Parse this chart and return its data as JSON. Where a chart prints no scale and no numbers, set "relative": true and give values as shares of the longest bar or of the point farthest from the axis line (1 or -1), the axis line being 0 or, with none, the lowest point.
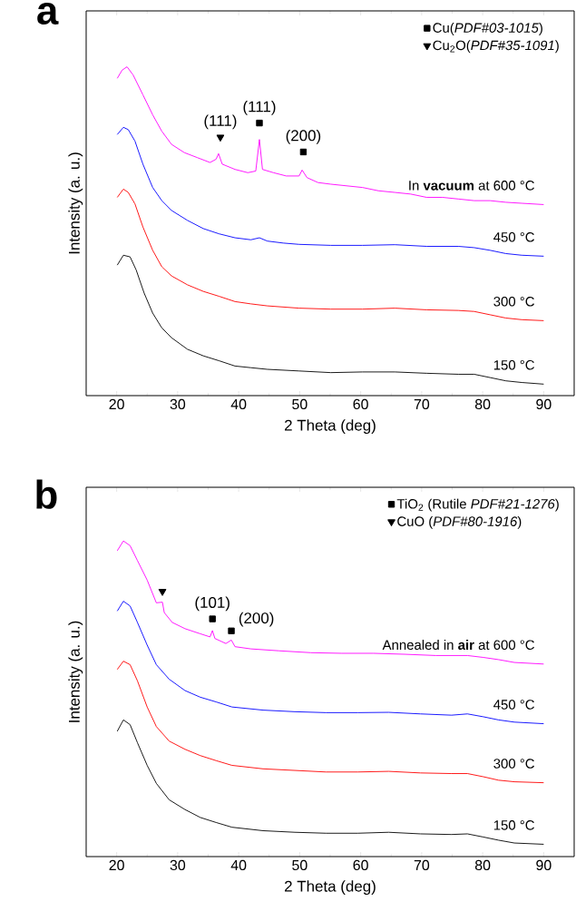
{
  "chart_data": [
    {
      "type": "line",
      "title": "a",
      "xlabel": "2 Theta (deg)",
      "ylabel": "Intensity (a. u.)",
      "relative": true,
      "xlim": [
        15,
        95
      ],
      "xticks": [
        20,
        30,
        40,
        50,
        60,
        70,
        80,
        90
      ],
      "tick_labels": "x",
      "legend": "top right",
      "marker": "none",
      "series": [
        {
          "name": "150 °C",
          "color": "#000000",
          "x": [
            20.1,
            21.1,
            22.2,
            23.2,
            24.5,
            25.9,
            27.4,
            29.0,
            31.6,
            34.2,
            36.8,
            39.4,
            42.0,
            44.7,
            49.9,
            55.1,
            60.3,
            65.6,
            70.8,
            76.0,
            78.6,
            81.2,
            83.8,
            86.4,
            90
          ],
          "values": [
            0.397,
            0.427,
            0.422,
            0.382,
            0.312,
            0.251,
            0.206,
            0.176,
            0.141,
            0.121,
            0.106,
            0.09,
            0.085,
            0.08,
            0.075,
            0.07,
            0.072,
            0.072,
            0.068,
            0.065,
            0.065,
            0.055,
            0.045,
            0.04,
            0.035
          ]
        },
        {
          "name": "300 °C",
          "color": "#ff0000",
          "x": [
            20.1,
            21.1,
            21.9,
            23.0,
            24.3,
            25.9,
            27.4,
            29.0,
            31.6,
            34.2,
            36.8,
            39.4,
            42.0,
            44.7,
            49.9,
            55.1,
            60.3,
            65.6,
            70.8,
            76.0,
            78.6,
            81.2,
            83.8,
            86.4,
            90
          ],
          "values": [
            0.603,
            0.628,
            0.618,
            0.583,
            0.513,
            0.442,
            0.392,
            0.364,
            0.337,
            0.317,
            0.302,
            0.286,
            0.279,
            0.273,
            0.266,
            0.263,
            0.263,
            0.266,
            0.261,
            0.259,
            0.256,
            0.246,
            0.236,
            0.231,
            0.228
          ]
        },
        {
          "name": "450 °C",
          "color": "#0000ff",
          "x": [
            20.1,
            21.1,
            21.9,
            23.0,
            24.3,
            25.9,
            27.4,
            29.0,
            31.6,
            34.2,
            36.8,
            39.4,
            42.0,
            43.4,
            44.7,
            47.3,
            49.9,
            55.1,
            60.3,
            65.6,
            70.8,
            76.0,
            78.6,
            81.2,
            83.8,
            86.4,
            90
          ],
          "values": [
            0.794,
            0.816,
            0.809,
            0.774,
            0.704,
            0.633,
            0.593,
            0.563,
            0.533,
            0.508,
            0.492,
            0.48,
            0.474,
            0.48,
            0.47,
            0.464,
            0.46,
            0.457,
            0.457,
            0.459,
            0.454,
            0.454,
            0.45,
            0.442,
            0.432,
            0.427,
            0.424
          ]
        },
        {
          "name": "In **vacuum** at 600 °C",
          "color": "#ff00ff",
          "x": [
            20.1,
            20.9,
            21.7,
            22.7,
            24.3,
            25.9,
            27.4,
            29.0,
            31.1,
            33.2,
            35.3,
            36.3,
            36.7,
            37.3,
            39.4,
            41.5,
            42.8,
            43.4,
            43.9,
            45.7,
            47.8,
            49.9,
            50.4,
            51.2,
            53.0,
            55.1,
            57.7,
            60.3,
            62.9,
            65.6,
            68.2,
            70.8,
            73.4,
            76.0,
            78.6,
            81.2,
            83.8,
            86.4,
            90
          ],
          "values": [
            0.965,
            0.99,
            1.0,
            0.975,
            0.915,
            0.854,
            0.804,
            0.764,
            0.739,
            0.724,
            0.709,
            0.719,
            0.736,
            0.704,
            0.688,
            0.678,
            0.683,
            0.779,
            0.688,
            0.678,
            0.668,
            0.668,
            0.686,
            0.663,
            0.648,
            0.643,
            0.638,
            0.633,
            0.623,
            0.618,
            0.613,
            0.603,
            0.603,
            0.598,
            0.593,
            0.593,
            0.588,
            0.585,
            0.581
          ]
        },
        {
          "name": "Cu(*PDF#03-1015*)",
          "type": "scatter",
          "marker": "square",
          "color": "#000000",
          "x": [
            43.4,
            50.6
          ],
          "values": [
            0.829,
            0.741
          ]
        },
        {
          "name": "Cu$_{2}$O(*PDF#35-1091*)",
          "type": "scatter",
          "marker": "triangle",
          "color": "#000000",
          "x": [
            37.0
          ],
          "values": [
            0.786
          ]
        }
      ],
      "annotations": [
        {
          "text": "(111)",
          "x": 37.0,
          "y": 0.786
        },
        {
          "text": "(111)",
          "x": 43.4,
          "y": 0.829
        },
        {
          "text": "(200)",
          "x": 50.6,
          "y": 0.741
        }
      ]
    },
    {
      "type": "line",
      "title": "b",
      "xlabel": "2 Theta (deg)",
      "ylabel": "Intensity (a. u.)",
      "relative": true,
      "xlim": [
        15,
        95
      ],
      "xticks": [
        20,
        30,
        40,
        50,
        60,
        70,
        80,
        90
      ],
      "tick_labels": "x",
      "legend": "top right",
      "marker": "none",
      "series": [
        {
          "name": "150 °C",
          "color": "#000000",
          "x": [
            20.1,
            21.1,
            22.2,
            23.4,
            25.0,
            26.5,
            28.6,
            31.2,
            33.7,
            36.3,
            38.9,
            44.0,
            49.2,
            54.3,
            59.5,
            64.6,
            69.8,
            74.9,
            77.5,
            80.1,
            82.6,
            85.2,
            90
          ],
          "values": [
            0.397,
            0.433,
            0.418,
            0.361,
            0.289,
            0.232,
            0.18,
            0.149,
            0.124,
            0.108,
            0.093,
            0.082,
            0.077,
            0.074,
            0.074,
            0.077,
            0.072,
            0.07,
            0.072,
            0.062,
            0.052,
            0.043,
            0.039
          ]
        },
        {
          "name": "300 °C",
          "color": "#ff0000",
          "x": [
            20.1,
            21.1,
            22.2,
            23.4,
            25.0,
            26.5,
            28.6,
            31.2,
            33.7,
            36.3,
            38.9,
            44.0,
            49.2,
            54.3,
            59.5,
            64.6,
            69.8,
            74.9,
            77.5,
            80.1,
            82.6,
            85.2,
            90
          ],
          "values": [
            0.593,
            0.619,
            0.608,
            0.557,
            0.474,
            0.412,
            0.366,
            0.34,
            0.32,
            0.304,
            0.289,
            0.278,
            0.273,
            0.268,
            0.268,
            0.27,
            0.265,
            0.263,
            0.263,
            0.253,
            0.242,
            0.237,
            0.234
          ]
        },
        {
          "name": "450 °C",
          "color": "#0000ff",
          "x": [
            20.1,
            21.1,
            22.2,
            23.4,
            25.0,
            26.5,
            28.6,
            31.2,
            33.7,
            36.3,
            38.9,
            44.0,
            49.2,
            54.3,
            59.5,
            64.6,
            69.8,
            74.9,
            77.5,
            80.1,
            82.6,
            85.2,
            90
          ],
          "values": [
            0.778,
            0.809,
            0.794,
            0.742,
            0.67,
            0.608,
            0.562,
            0.526,
            0.505,
            0.49,
            0.474,
            0.464,
            0.459,
            0.456,
            0.456,
            0.457,
            0.452,
            0.448,
            0.452,
            0.443,
            0.433,
            0.426,
            0.421
          ]
        },
        {
          "name": "Annealed in **air** at 600 °C",
          "color": "#ff00ff",
          "x": [
            20.1,
            21.1,
            22.2,
            23.4,
            25.0,
            26.5,
            27.5,
            27.8,
            29.1,
            31.2,
            33.7,
            35.3,
            35.7,
            36.1,
            37.9,
            38.8,
            39.4,
            42.0,
            46.6,
            51.8,
            56.9,
            62.1,
            67.2,
            72.3,
            77.5,
            80.1,
            82.6,
            85.2,
            90
          ],
          "values": [
            0.969,
            1.0,
            0.985,
            0.938,
            0.876,
            0.804,
            0.806,
            0.773,
            0.742,
            0.722,
            0.706,
            0.696,
            0.716,
            0.691,
            0.675,
            0.686,
            0.665,
            0.658,
            0.652,
            0.646,
            0.644,
            0.644,
            0.641,
            0.637,
            0.637,
            0.631,
            0.624,
            0.615,
            0.61
          ]
        },
        {
          "name": "TiO$_{2}$ (Rutile *PDF#21-1276*)",
          "type": "scatter",
          "marker": "square",
          "color": "#000000",
          "x": [
            35.7,
            38.8
          ],
          "values": [
            0.753,
            0.715
          ]
        },
        {
          "name": "CuO (*PDF#80-1916*)",
          "type": "scatter",
          "marker": "triangle",
          "color": "#000000",
          "x": [
            27.5
          ],
          "values": [
            0.84
          ]
        }
      ],
      "annotations": [
        {
          "text": "(101)",
          "x": 35.7,
          "y": 0.753
        },
        {
          "text": "(200)",
          "x": 38.8,
          "y": 0.715
        }
      ]
    }
  ]
}
